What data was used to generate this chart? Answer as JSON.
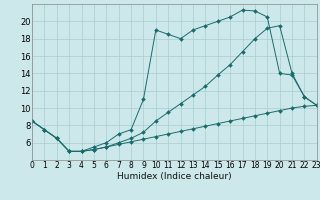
{
  "xlabel": "Humidex (Indice chaleur)",
  "bg_color": "#cde8ea",
  "grid_color": "#aacdd0",
  "line_color": "#1a6b6b",
  "x_min": 0,
  "x_max": 23,
  "y_min": 4,
  "y_max": 22,
  "yticks": [
    6,
    8,
    10,
    12,
    14,
    16,
    18,
    20
  ],
  "xticks": [
    0,
    1,
    2,
    3,
    4,
    5,
    6,
    7,
    8,
    9,
    10,
    11,
    12,
    13,
    14,
    15,
    16,
    17,
    18,
    19,
    20,
    21,
    22,
    23
  ],
  "line1_x": [
    0,
    1,
    2,
    3,
    4,
    5,
    6,
    7,
    8,
    9,
    10,
    11,
    12,
    13,
    14,
    15,
    16,
    17,
    18,
    19,
    20,
    21,
    22,
    23
  ],
  "line1_y": [
    8.5,
    7.5,
    6.5,
    5.0,
    5.0,
    5.5,
    6.0,
    7.0,
    7.5,
    11.0,
    19.0,
    18.5,
    18.0,
    19.0,
    19.5,
    20.0,
    20.5,
    21.3,
    21.2,
    20.5,
    14.0,
    13.8,
    11.3,
    10.3
  ],
  "line2_x": [
    0,
    1,
    2,
    3,
    4,
    5,
    6,
    7,
    8,
    9,
    10,
    11,
    12,
    13,
    14,
    15,
    16,
    17,
    18,
    19,
    20,
    21,
    22,
    23
  ],
  "line2_y": [
    8.5,
    7.5,
    6.5,
    5.0,
    5.0,
    5.2,
    5.5,
    6.0,
    6.5,
    7.2,
    8.5,
    9.5,
    10.5,
    11.5,
    12.5,
    13.8,
    15.0,
    16.5,
    18.0,
    19.2,
    19.5,
    14.0,
    11.3,
    10.3
  ],
  "line3_x": [
    0,
    1,
    2,
    3,
    4,
    5,
    6,
    7,
    8,
    9,
    10,
    11,
    12,
    13,
    14,
    15,
    16,
    17,
    18,
    19,
    20,
    21,
    22,
    23
  ],
  "line3_y": [
    8.5,
    7.5,
    6.5,
    5.0,
    5.0,
    5.2,
    5.5,
    5.8,
    6.1,
    6.4,
    6.7,
    7.0,
    7.3,
    7.6,
    7.9,
    8.2,
    8.5,
    8.8,
    9.1,
    9.4,
    9.7,
    10.0,
    10.2,
    10.3
  ],
  "xlabel_fontsize": 6.5,
  "tick_fontsize": 5.5,
  "ytick_fontsize": 6.0
}
